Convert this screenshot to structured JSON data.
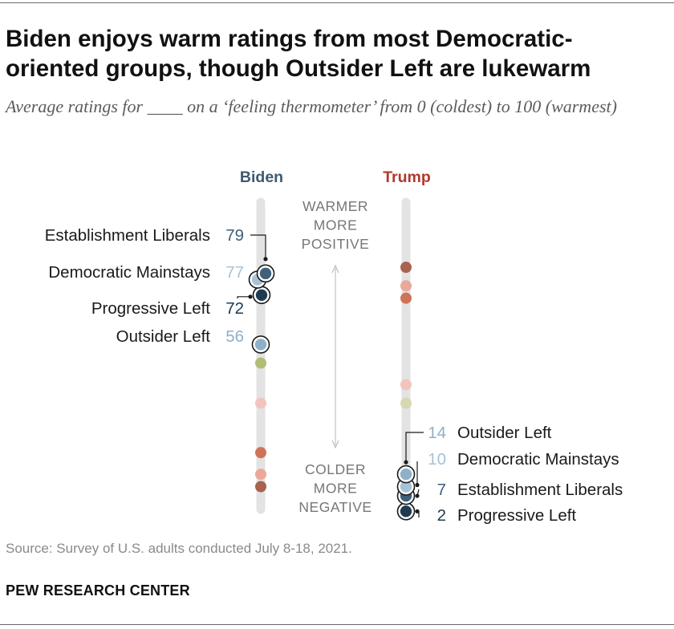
{
  "title": "Biden enjoys warm ratings from most Democratic-oriented groups, though Outsider Left are lukewarm",
  "subtitle": "Average ratings for ____ on a ‘feeling thermometer’ from 0 (coldest) to 100 (warmest)",
  "source": "Source: Survey of U.S. adults conducted July 8-18, 2021.",
  "credit": "PEW RESEARCH CENTER",
  "legend": {
    "warmer": [
      "WARMER",
      "MORE",
      "POSITIVE"
    ],
    "colder": [
      "COLDER",
      "MORE",
      "NEGATIVE"
    ]
  },
  "colors": {
    "biden_header": "#3d5a73",
    "trump_header": "#b0392b",
    "track": "#e3e3e3",
    "Establishment Liberals": "#3f5f7a",
    "Democratic Mainstays": "#a8c2d6",
    "Progressive Left": "#1f3b50",
    "Outsider Left": "#8fb0c8",
    "other_brown": "#a8624e",
    "other_orange": "#cf7358",
    "other_pink": "#eaa89b",
    "other_lightpink": "#f1c5bd",
    "other_olive": "#b0bd77",
    "other_lightolive": "#d5d8b0"
  },
  "chart_data": {
    "type": "scatter",
    "title": "Biden enjoys warm ratings from most Democratic-oriented groups, though Outsider Left are lukewarm",
    "ylim": [
      0,
      100
    ],
    "series": [
      {
        "name": "Biden",
        "highlighted": [
          {
            "label": "Establishment Liberals",
            "value": 79
          },
          {
            "label": "Democratic Mainstays",
            "value": 77
          },
          {
            "label": "Progressive Left",
            "value": 72
          },
          {
            "label": "Outsider Left",
            "value": 56
          }
        ],
        "other_values": [
          {
            "value": 50,
            "color": "other_olive"
          },
          {
            "value": 37,
            "color": "other_lightpink"
          },
          {
            "value": 21,
            "color": "other_orange"
          },
          {
            "value": 14,
            "color": "other_pink"
          },
          {
            "value": 10,
            "color": "other_brown"
          }
        ]
      },
      {
        "name": "Trump",
        "highlighted": [
          {
            "label": "Outsider Left",
            "value": 14
          },
          {
            "label": "Democratic Mainstays",
            "value": 10
          },
          {
            "label": "Establishment Liberals",
            "value": 7
          },
          {
            "label": "Progressive Left",
            "value": 2
          }
        ],
        "other_values": [
          {
            "value": 81,
            "color": "other_brown"
          },
          {
            "value": 75,
            "color": "other_pink"
          },
          {
            "value": 71,
            "color": "other_orange"
          },
          {
            "value": 43,
            "color": "other_lightpink"
          },
          {
            "value": 37,
            "color": "other_lightolive"
          }
        ]
      }
    ]
  }
}
